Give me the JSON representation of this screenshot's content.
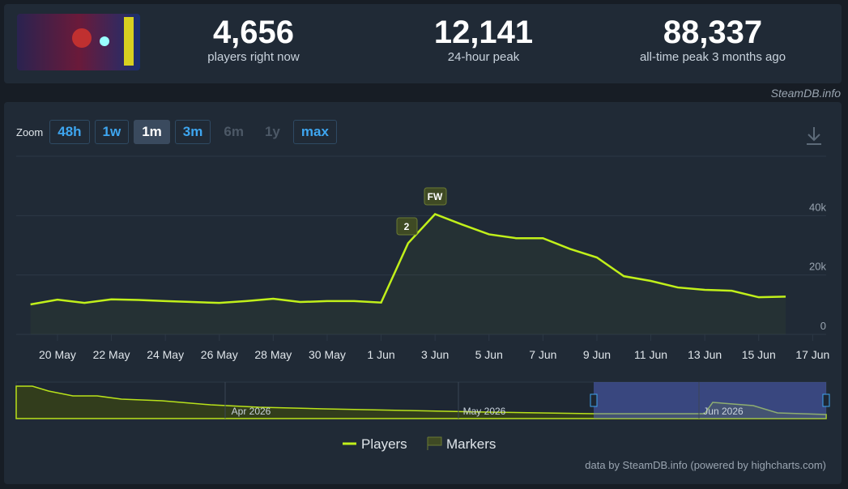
{
  "header": {
    "stats": [
      {
        "value": "4,656",
        "label": "players right now"
      },
      {
        "value": "12,141",
        "label": "24-hour peak"
      },
      {
        "value": "88,337",
        "label": "all-time peak 3 months ago"
      }
    ],
    "site": "SteamDB.info"
  },
  "zoom": {
    "label": "Zoom",
    "buttons": [
      "48h",
      "1w",
      "1m",
      "3m",
      "6m",
      "1y",
      "max"
    ]
  },
  "chart_data": {
    "type": "line",
    "categories": [
      null,
      "20 May",
      null,
      "22 May",
      null,
      "24 May",
      null,
      "26 May",
      null,
      "28 May",
      null,
      "30 May",
      null,
      "1 Jun",
      null,
      "3 Jun",
      null,
      "5 Jun",
      null,
      "7 Jun",
      null,
      "9 Jun",
      null,
      "11 Jun",
      null,
      "13 Jun",
      null,
      "15 Jun",
      null,
      "17 Jun"
    ],
    "series": [
      {
        "name": "Players",
        "color": "#c1f01a",
        "values": [
          10100,
          11700,
          10600,
          11800,
          11600,
          11200,
          10900,
          10600,
          11200,
          12000,
          10900,
          11200,
          11200,
          10700,
          30700,
          40500,
          37000,
          33700,
          32400,
          32400,
          28800,
          25900,
          19600,
          18000,
          15800,
          15000,
          14700,
          12500,
          12700,
          null
        ]
      }
    ],
    "ylim": [
      0,
      60000
    ],
    "yticks": [
      {
        "value": 0,
        "label": "0"
      },
      {
        "value": 20000,
        "label": "20k"
      },
      {
        "value": 40000,
        "label": "40k"
      }
    ],
    "grid": true,
    "flags": [
      "2",
      "FW"
    ],
    "marker_legend": "Markers"
  },
  "navigator": {
    "labels": [
      "Apr 2026",
      "May 2026",
      "Jun 2026"
    ]
  },
  "credit": "data by SteamDB.info (powered by highcharts.com)"
}
